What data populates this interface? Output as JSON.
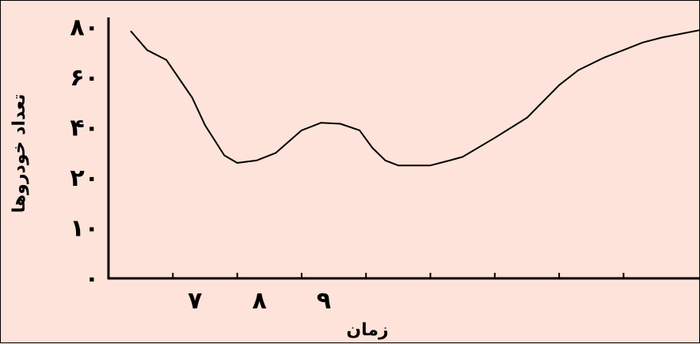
{
  "chart_data": {
    "type": "line",
    "title": "",
    "xlabel": "زمان",
    "ylabel": "تعداد خودروها",
    "y_ticks": [
      {
        "value": 0,
        "label": "۰"
      },
      {
        "value": 1,
        "label": "۱۰"
      },
      {
        "value": 2,
        "label": "۲۰"
      },
      {
        "value": 3,
        "label": "۴۰"
      },
      {
        "value": 4,
        "label": "۶۰"
      },
      {
        "value": 5,
        "label": "۸۰"
      }
    ],
    "x_ticks": [
      {
        "value": 1,
        "label": "۷"
      },
      {
        "value": 2,
        "label": "۸"
      },
      {
        "value": 3,
        "label": "۹"
      },
      {
        "value": 4,
        "label": ""
      },
      {
        "value": 5,
        "label": ""
      },
      {
        "value": 6,
        "label": ""
      },
      {
        "value": 7,
        "label": ""
      },
      {
        "value": 8,
        "label": ""
      }
    ],
    "xlim": [
      0,
      9.2
    ],
    "ylim": [
      0,
      5.2
    ],
    "grid": false,
    "series": [
      {
        "color": "#000000",
        "x": [
          0.35,
          0.6,
          0.9,
          1.3,
          1.5,
          1.8,
          2.0,
          2.3,
          2.6,
          3.0,
          3.3,
          3.6,
          3.9,
          4.1,
          4.3,
          4.5,
          5.0,
          5.3,
          5.5,
          6.0,
          6.5,
          7.0,
          7.3,
          7.7,
          8.0,
          8.3,
          8.6,
          9.2
        ],
        "y": [
          4.92,
          4.55,
          4.35,
          3.6,
          3.05,
          2.45,
          2.3,
          2.35,
          2.5,
          2.95,
          3.1,
          3.08,
          2.95,
          2.6,
          2.35,
          2.25,
          2.25,
          2.35,
          2.42,
          2.8,
          3.2,
          3.85,
          4.15,
          4.4,
          4.55,
          4.7,
          4.8,
          4.95
        ]
      }
    ]
  }
}
